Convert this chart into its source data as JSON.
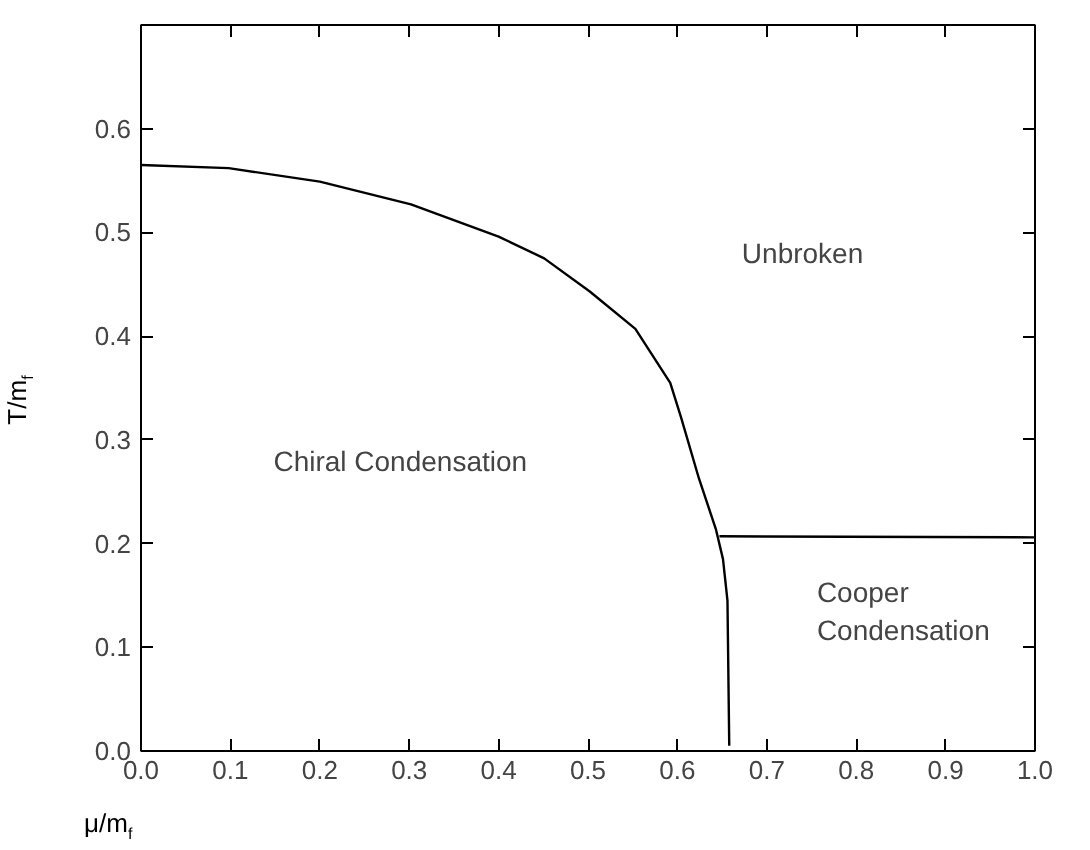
{
  "chart_data": {
    "type": "line",
    "xlabel": "μ/m$_{f}$",
    "ylabel": "T/m$_{f}$",
    "xlim": [
      0,
      1.0
    ],
    "ylim": [
      0,
      0.7
    ],
    "xticks": [
      {
        "value": 0,
        "label": "0.0"
      },
      {
        "value": 0.1,
        "label": "0.1"
      },
      {
        "value": 0.2,
        "label": "0.2"
      },
      {
        "value": 0.3,
        "label": "0.3"
      },
      {
        "value": 0.4,
        "label": "0.4"
      },
      {
        "value": 0.5,
        "label": "0.5"
      },
      {
        "value": 0.6,
        "label": "0.6"
      },
      {
        "value": 0.7,
        "label": "0.7"
      },
      {
        "value": 0.8,
        "label": "0.8"
      },
      {
        "value": 0.9,
        "label": "0.9"
      },
      {
        "value": 1.0,
        "label": "1.0"
      }
    ],
    "yticks": [
      {
        "value": 0,
        "label": "0.0"
      },
      {
        "value": 0.1,
        "label": "0.1"
      },
      {
        "value": 0.2,
        "label": "0.2"
      },
      {
        "value": 0.3,
        "label": "0.3"
      },
      {
        "value": 0.4,
        "label": "0.4"
      },
      {
        "value": 0.5,
        "label": "0.5"
      },
      {
        "value": 0.6,
        "label": "0.6"
      }
    ],
    "grid": false,
    "series": [
      {
        "color": "#000000",
        "x": [
          0,
          0.098,
          0.2,
          0.302,
          0.4,
          0.451,
          0.502,
          0.553,
          0.592,
          0.604,
          0.624,
          0.643,
          0.651,
          0.656,
          0.658
        ],
        "values": [
          0.565,
          0.562,
          0.549,
          0.527,
          0.496,
          0.475,
          0.443,
          0.407,
          0.355,
          0.322,
          0.263,
          0.214,
          0.185,
          0.145,
          0.005
        ]
      },
      {
        "color": "#000000",
        "x": [
          0.647,
          1.0
        ],
        "values": [
          0.207,
          0.206
        ]
      }
    ],
    "annotations": [
      "Unbroken",
      "Chiral Condensation",
      "Cooper\nCondensation"
    ]
  }
}
